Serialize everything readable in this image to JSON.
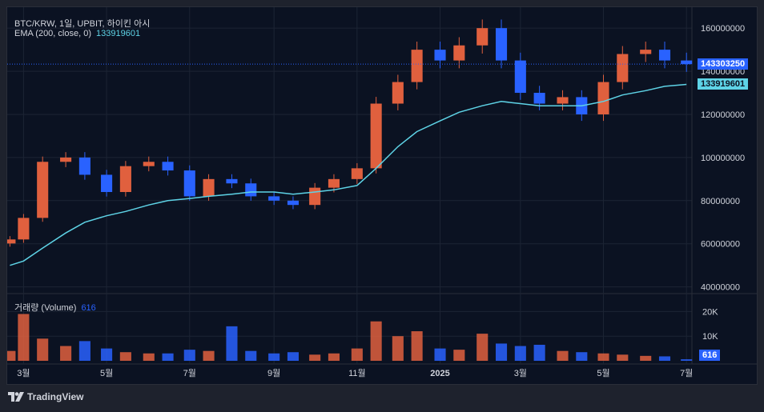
{
  "legend": {
    "title": "BTC/KRW, 1일, UPBIT, 하이킨 아시",
    "ema_label": "EMA (200, close, 0)",
    "ema_value": "133919601",
    "volume_label": "거래량 (Volume)",
    "volume_value": "616"
  },
  "price_tags": {
    "last": "143303250",
    "ema": "133919601",
    "volume": "616"
  },
  "colors": {
    "background": "#0b1222",
    "up": "#e0603e",
    "down": "#2962ff",
    "ema": "#5ed3e6",
    "last_tag": "#2962ff",
    "ema_tag": "#5ed3e6",
    "grid": "#1c2434"
  },
  "footer": {
    "brand": "TradingView",
    "logo_icon": "tradingview-logo-icon"
  },
  "chart_data": [
    {
      "type": "candlestick",
      "title": "BTC/KRW, 1일, UPBIT, 하이킨 아시",
      "y_axis_ticks": [
        "160000000",
        "140000000",
        "120000000",
        "100000000",
        "80000000",
        "60000000",
        "40000000"
      ],
      "ylim": [
        38000000,
        166000000
      ],
      "x_axis_ticks": [
        "3월",
        "5월",
        "7월",
        "9월",
        "11월",
        "2025",
        "3월",
        "5월",
        "7월"
      ],
      "x": [
        "2024-02-20",
        "2024-03-01",
        "2024-03-15",
        "2024-04-01",
        "2024-04-15",
        "2024-05-01",
        "2024-05-15",
        "2024-06-01",
        "2024-06-15",
        "2024-07-01",
        "2024-07-15",
        "2024-08-01",
        "2024-08-15",
        "2024-09-01",
        "2024-09-15",
        "2024-10-01",
        "2024-10-15",
        "2024-11-01",
        "2024-11-15",
        "2024-12-01",
        "2024-12-15",
        "2025-01-01",
        "2025-01-15",
        "2025-02-01",
        "2025-02-15",
        "2025-03-01",
        "2025-03-15",
        "2025-04-01",
        "2025-04-15",
        "2025-05-01",
        "2025-05-15",
        "2025-06-01",
        "2025-06-15",
        "2025-07-01"
      ],
      "close": [
        62000000,
        72000000,
        98000000,
        100000000,
        92000000,
        84000000,
        96000000,
        98000000,
        94000000,
        82000000,
        90000000,
        88000000,
        82000000,
        80000000,
        78000000,
        86000000,
        90000000,
        95000000,
        125000000,
        135000000,
        150000000,
        145000000,
        152000000,
        160000000,
        145000000,
        130000000,
        125000000,
        128000000,
        120000000,
        135000000,
        148000000,
        150000000,
        145000000,
        143303250
      ],
      "ema": {
        "name": "EMA (200, close, 0)",
        "values": [
          50000000,
          52000000,
          58000000,
          65000000,
          70000000,
          73000000,
          75000000,
          78000000,
          80000000,
          81000000,
          82000000,
          83000000,
          84000000,
          84000000,
          83000000,
          84000000,
          85000000,
          87000000,
          95000000,
          105000000,
          112000000,
          117000000,
          121000000,
          124000000,
          126000000,
          125000000,
          124000000,
          124000000,
          124000000,
          126000000,
          129000000,
          131000000,
          133000000,
          133919601
        ]
      },
      "last_price": 143303250
    },
    {
      "type": "bar",
      "title": "거래량 (Volume)",
      "y_axis_ticks": [
        "20K",
        "10K"
      ],
      "ylim": [
        0,
        25000
      ],
      "x": [
        "2024-02-20",
        "2024-03-01",
        "2024-03-15",
        "2024-04-01",
        "2024-04-15",
        "2024-05-01",
        "2024-05-15",
        "2024-06-01",
        "2024-06-15",
        "2024-07-01",
        "2024-07-15",
        "2024-08-01",
        "2024-08-15",
        "2024-09-01",
        "2024-09-15",
        "2024-10-01",
        "2024-10-15",
        "2024-11-01",
        "2024-11-15",
        "2024-12-01",
        "2024-12-15",
        "2025-01-01",
        "2025-01-15",
        "2025-02-01",
        "2025-02-15",
        "2025-03-01",
        "2025-03-15",
        "2025-04-01",
        "2025-04-15",
        "2025-05-01",
        "2025-05-15",
        "2025-06-01",
        "2025-06-15",
        "2025-07-01"
      ],
      "values": [
        4000,
        19000,
        9000,
        6000,
        8000,
        5000,
        3500,
        3000,
        3000,
        4500,
        4000,
        14000,
        4000,
        3000,
        3500,
        2500,
        3000,
        5000,
        16000,
        10000,
        12000,
        5000,
        4500,
        11000,
        7000,
        6000,
        6500,
        4000,
        3500,
        3000,
        2500,
        2000,
        1800,
        616
      ],
      "last_value": 616
    }
  ]
}
